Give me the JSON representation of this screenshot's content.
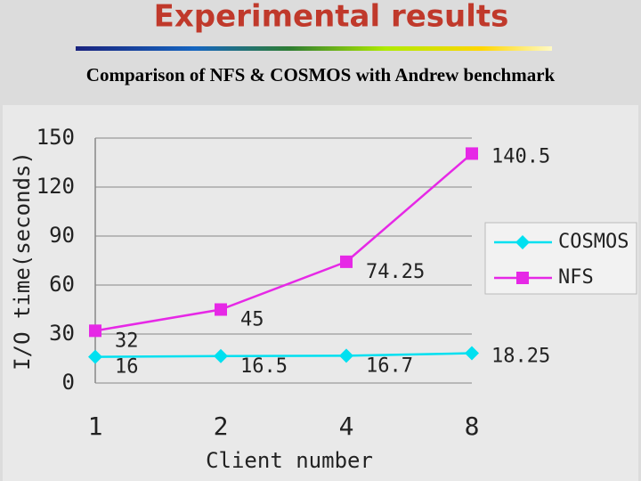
{
  "chart_data": {
    "type": "line",
    "title": "Experimental results",
    "subtitle": "Comparison of NFS & COSMOS with Andrew benchmark",
    "x_label": "Client number",
    "y_label": "I/O time(seconds)",
    "categories": [
      "1",
      "2",
      "4",
      "8"
    ],
    "series": [
      {
        "name": "COSMOS",
        "color": "#00e0f0",
        "marker": "diamond",
        "values": [
          16,
          16.5,
          16.7,
          18.25
        ]
      },
      {
        "name": "NFS",
        "color": "#e628e6",
        "marker": "square",
        "values": [
          32,
          45,
          74.25,
          140.5
        ]
      }
    ],
    "ylim": [
      0,
      150
    ],
    "yticks": [
      0,
      30,
      60,
      90,
      120,
      150
    ],
    "grid": true,
    "legend": "right"
  }
}
